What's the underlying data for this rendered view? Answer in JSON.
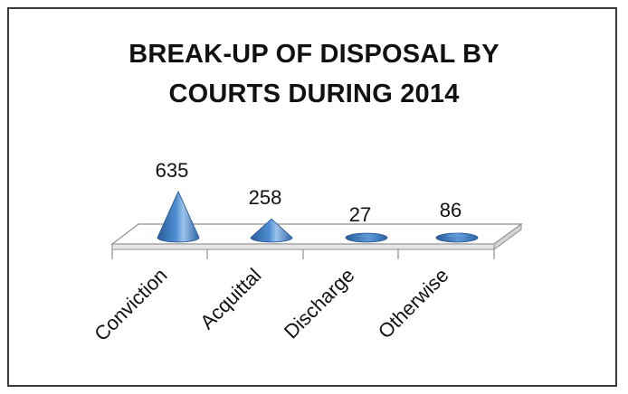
{
  "chart_data": {
    "type": "bar",
    "shape": "cone-3d",
    "title_lines": [
      "BREAK-UP OF DISPOSAL BY",
      "COURTS DURING 2014"
    ],
    "categories": [
      "Conviction",
      "Acquittal",
      "Discharge",
      "Otherwise"
    ],
    "values": [
      635,
      258,
      27,
      86
    ],
    "data_labels": [
      "635",
      "258",
      "27",
      "86"
    ],
    "legend": "none",
    "grid": false,
    "colors": {
      "cone_dark": "#2a5d9b",
      "cone_mid": "#4a86c8",
      "cone_light": "#9cc3ea",
      "floor_edge": "#8a8a8a"
    }
  }
}
